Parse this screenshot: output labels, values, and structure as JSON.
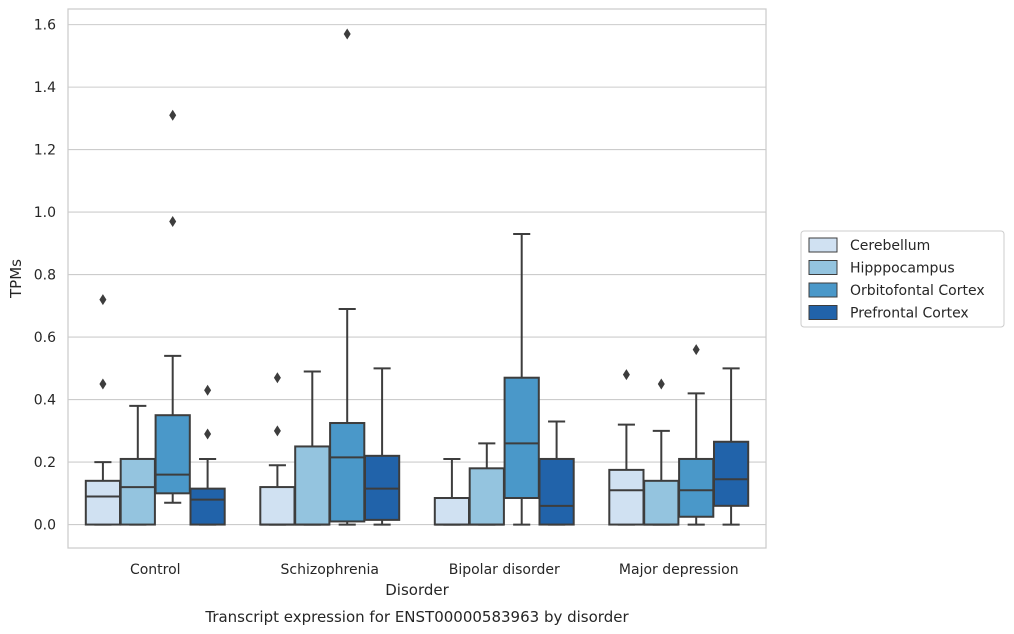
{
  "chart_data": {
    "type": "box",
    "caption": "Transcript expression for ENST00000583963 by disorder",
    "xlabel": "Disorder",
    "ylabel": "TPMs",
    "ylim": [
      -0.075,
      1.65
    ],
    "yticks": [
      0.0,
      0.2,
      0.4,
      0.6,
      0.8,
      1.0,
      1.2,
      1.4,
      1.6
    ],
    "ytick_labels": [
      "0.0",
      "0.2",
      "0.4",
      "0.6",
      "0.8",
      "1.0",
      "1.2",
      "1.4",
      "1.6"
    ],
    "grid": "horizontal",
    "legend_position": "right",
    "categories": [
      "Control",
      "Schizophrenia",
      "Bipolar disorder",
      "Major depression"
    ],
    "series": [
      {
        "name": "Cerebellum",
        "color": "#d0e1f2",
        "boxes": [
          {
            "whislo": 0.0,
            "q1": 0.0,
            "med": 0.09,
            "q3": 0.14,
            "whishi": 0.2,
            "fliers": [
              0.45,
              0.72
            ]
          },
          {
            "whislo": 0.0,
            "q1": 0.0,
            "med": 0.0,
            "q3": 0.12,
            "whishi": 0.19,
            "fliers": [
              0.3,
              0.47
            ]
          },
          {
            "whislo": 0.0,
            "q1": 0.0,
            "med": 0.0,
            "q3": 0.085,
            "whishi": 0.21,
            "fliers": []
          },
          {
            "whislo": 0.0,
            "q1": 0.0,
            "med": 0.11,
            "q3": 0.175,
            "whishi": 0.32,
            "fliers": [
              0.48
            ]
          }
        ]
      },
      {
        "name": "Hipppocampus",
        "color": "#94c4df",
        "boxes": [
          {
            "whislo": 0.0,
            "q1": 0.0,
            "med": 0.12,
            "q3": 0.21,
            "whishi": 0.38,
            "fliers": []
          },
          {
            "whislo": 0.0,
            "q1": 0.0,
            "med": 0.0,
            "q3": 0.25,
            "whishi": 0.49,
            "fliers": []
          },
          {
            "whislo": 0.0,
            "q1": 0.0,
            "med": 0.0,
            "q3": 0.18,
            "whishi": 0.26,
            "fliers": []
          },
          {
            "whislo": 0.0,
            "q1": 0.0,
            "med": 0.0,
            "q3": 0.14,
            "whishi": 0.3,
            "fliers": [
              0.45
            ]
          }
        ]
      },
      {
        "name": "Orbitofontal Cortex",
        "color": "#4a98c9",
        "boxes": [
          {
            "whislo": 0.07,
            "q1": 0.1,
            "med": 0.16,
            "q3": 0.35,
            "whishi": 0.54,
            "fliers": [
              0.97,
              1.31
            ]
          },
          {
            "whislo": 0.0,
            "q1": 0.01,
            "med": 0.215,
            "q3": 0.325,
            "whishi": 0.69,
            "fliers": [
              1.57
            ]
          },
          {
            "whislo": 0.0,
            "q1": 0.085,
            "med": 0.26,
            "q3": 0.47,
            "whishi": 0.93,
            "fliers": []
          },
          {
            "whislo": 0.0,
            "q1": 0.025,
            "med": 0.11,
            "q3": 0.21,
            "whishi": 0.42,
            "fliers": [
              0.56
            ]
          }
        ]
      },
      {
        "name": "Prefrontal Cortex",
        "color": "#2163aa",
        "boxes": [
          {
            "whislo": 0.0,
            "q1": 0.0,
            "med": 0.08,
            "q3": 0.115,
            "whishi": 0.21,
            "fliers": [
              0.29,
              0.43
            ]
          },
          {
            "whislo": 0.0,
            "q1": 0.015,
            "med": 0.115,
            "q3": 0.22,
            "whishi": 0.5,
            "fliers": []
          },
          {
            "whislo": 0.0,
            "q1": 0.0,
            "med": 0.06,
            "q3": 0.21,
            "whishi": 0.33,
            "fliers": []
          },
          {
            "whislo": 0.0,
            "q1": 0.06,
            "med": 0.145,
            "q3": 0.265,
            "whishi": 0.5,
            "fliers": []
          }
        ]
      }
    ]
  }
}
